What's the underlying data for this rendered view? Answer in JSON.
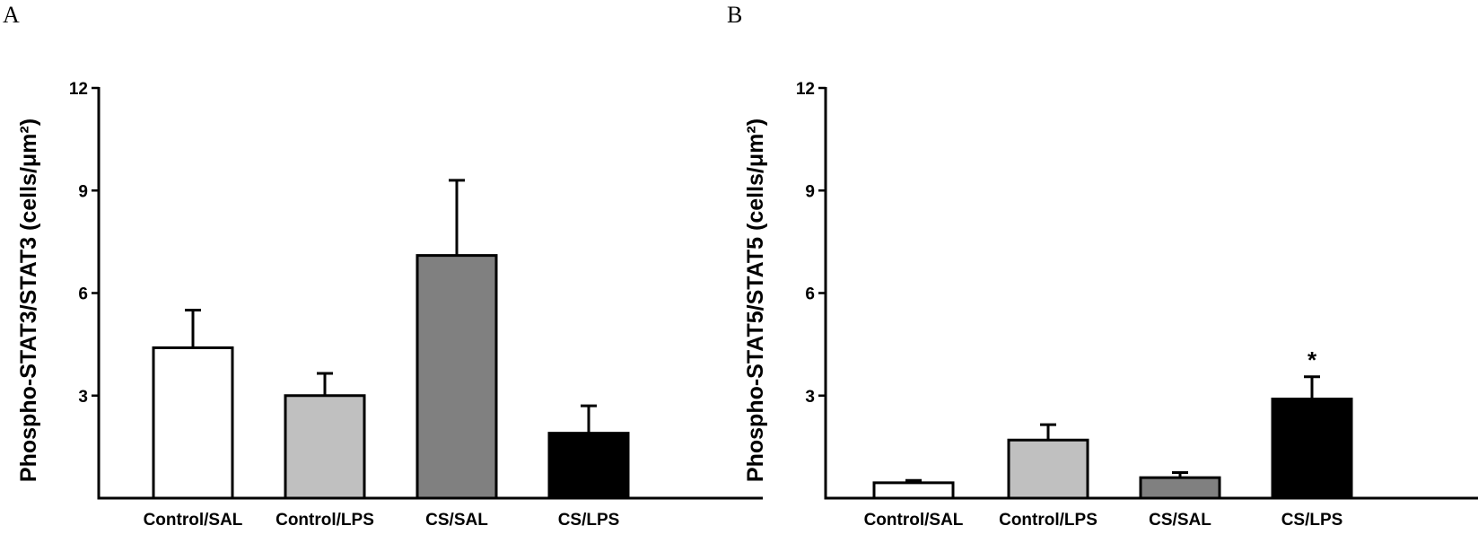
{
  "chart_data": [
    {
      "type": "bar",
      "panel": "A",
      "ylabel": "Phospho-STAT3/STAT3 (cells/μm²)",
      "categories": [
        "Control/SAL",
        "Control/LPS",
        "CS/SAL",
        "CS/LPS"
      ],
      "values": [
        4.4,
        3.0,
        7.1,
        1.9
      ],
      "errors": [
        1.1,
        0.65,
        2.2,
        0.8
      ],
      "colors": [
        "#ffffff",
        "#c0c0c0",
        "#808080",
        "#000000"
      ],
      "yticks": [
        3,
        6,
        9,
        12
      ],
      "ytick_labels": [
        "3",
        "6",
        "9",
        "12"
      ],
      "ylim": [
        0,
        12
      ],
      "annotations": [
        "",
        "",
        "",
        ""
      ]
    },
    {
      "type": "bar",
      "panel": "B",
      "ylabel": "Phospho-STAT5/STAT5 (cells/μm²)",
      "categories": [
        "Control/SAL",
        "Control/LPS",
        "CS/SAL",
        "CS/LPS"
      ],
      "values": [
        0.45,
        1.7,
        0.6,
        2.9
      ],
      "errors": [
        0.07,
        0.45,
        0.15,
        0.65
      ],
      "colors": [
        "#ffffff",
        "#c0c0c0",
        "#808080",
        "#000000"
      ],
      "yticks": [
        3,
        6,
        9,
        12
      ],
      "ytick_labels": [
        "3",
        "6",
        "9",
        "12"
      ],
      "ylim": [
        0,
        12
      ],
      "annotations": [
        "",
        "",
        "",
        "*"
      ]
    }
  ]
}
